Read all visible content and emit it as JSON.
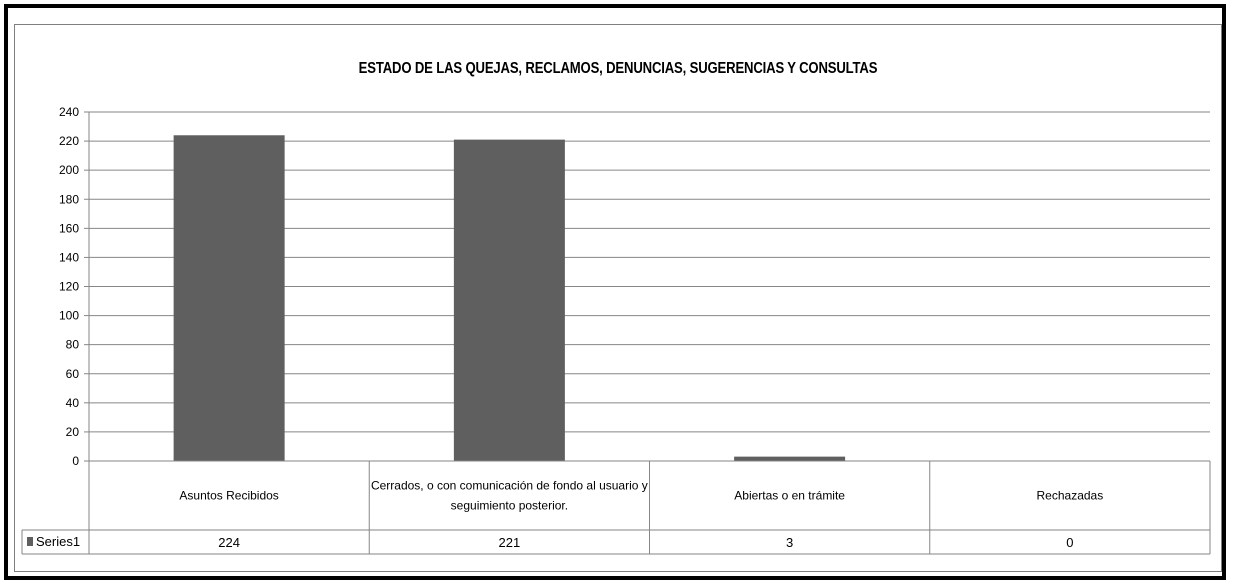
{
  "chart_data": {
    "type": "bar",
    "title": "ESTADO DE LAS QUEJAS, RECLAMOS, DENUNCIAS, SUGERENCIAS Y CONSULTAS",
    "categories": [
      "Asuntos Recibidos",
      "Cerrados, o con comunicación de fondo al usuario y seguimiento posterior.",
      "Abiertas o en trámite",
      "Rechazadas"
    ],
    "category_lines": [
      [
        "Asuntos Recibidos"
      ],
      [
        "Cerrados, o con comunicación de fondo al usuario y",
        "seguimiento posterior."
      ],
      [
        "Abiertas o en trámite"
      ],
      [
        "Rechazadas"
      ]
    ],
    "series": [
      {
        "name": "Series1",
        "values": [
          224,
          221,
          3,
          0
        ],
        "color": "#5f5f5f"
      }
    ],
    "yticks": [
      0,
      20,
      40,
      60,
      80,
      100,
      120,
      140,
      160,
      180,
      200,
      220,
      240
    ],
    "ylim": [
      0,
      240
    ],
    "grid": true,
    "legend": "data-table",
    "xlabel": "",
    "ylabel": ""
  }
}
